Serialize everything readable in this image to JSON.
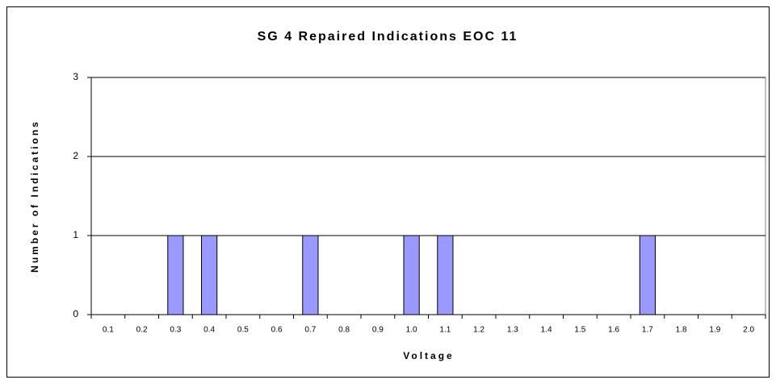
{
  "chart_data": {
    "type": "bar",
    "title": "SG 4 Repaired Indications EOC 11",
    "x_label": "Voltage",
    "y_label": "Number of Indications",
    "categories": [
      "0.1",
      "0.2",
      "0.3",
      "0.4",
      "0.5",
      "0.6",
      "0.7",
      "0.8",
      "0.9",
      "1.0",
      "1.1",
      "1.2",
      "1.3",
      "1.4",
      "1.5",
      "1.6",
      "1.7",
      "1.8",
      "1.9",
      "2.0"
    ],
    "values": [
      0,
      0,
      1,
      1,
      0,
      0,
      1,
      0,
      0,
      1,
      1,
      0,
      0,
      0,
      0,
      0,
      1,
      0,
      0,
      0
    ],
    "color": "#9999ff",
    "ylim": [
      0,
      3
    ],
    "yticks": [
      0,
      1,
      2,
      3
    ],
    "grid": true
  }
}
